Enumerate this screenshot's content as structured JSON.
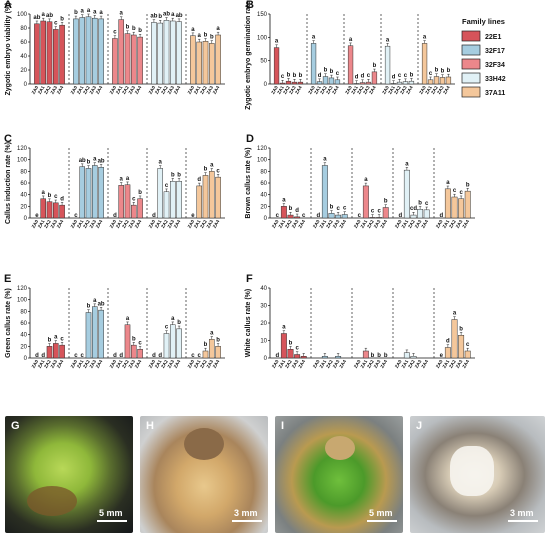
{
  "legend": {
    "title": "Family lines",
    "entries": [
      {
        "name": "22E1",
        "color": "#d6545a"
      },
      {
        "name": "32F17",
        "color": "#a6cde0"
      },
      {
        "name": "32F34",
        "color": "#ec878b"
      },
      {
        "name": "33H42",
        "color": "#e1f1f6"
      },
      {
        "name": "37A11",
        "color": "#f4c79b"
      }
    ]
  },
  "chart_data": [
    {
      "panel": "A",
      "type": "bar",
      "ylabel": "Zygotic embryo viability (%)",
      "ylim": [
        0,
        100
      ],
      "yticks": [
        0,
        20,
        40,
        60,
        80,
        100
      ],
      "groups": [
        "22E1",
        "32F17",
        "32F34",
        "33H42",
        "37A11"
      ],
      "categories": [
        "ZA0",
        "ZA1",
        "ZA2",
        "ZA3",
        "ZA4"
      ],
      "values": [
        [
          86,
          90,
          89,
          78,
          84
        ],
        [
          93,
          95,
          96,
          94,
          93
        ],
        [
          65,
          92,
          72,
          70,
          67
        ],
        [
          88,
          87,
          91,
          90,
          89
        ],
        [
          69,
          60,
          61,
          58,
          70
        ]
      ],
      "labels": [
        [
          "ab",
          "a",
          "ab",
          "c",
          "b"
        ],
        [
          "b",
          "a",
          "a",
          "a",
          "a"
        ],
        [
          "c",
          "a",
          "b",
          "b",
          "b"
        ],
        [
          "ab",
          "b",
          "ab",
          "a",
          "ab"
        ],
        [
          "a",
          "a",
          "b",
          "b",
          "a"
        ]
      ]
    },
    {
      "panel": "B",
      "type": "bar",
      "ylabel": "Zygotic embryo germination rate (%)",
      "ylim": [
        0,
        150
      ],
      "yticks": [
        0,
        50,
        100,
        150
      ],
      "groups": [
        "22E1",
        "32F17",
        "32F34",
        "33H42",
        "37A11"
      ],
      "categories": [
        "ZA0",
        "ZA1",
        "ZA2",
        "ZA3",
        "ZA4"
      ],
      "values": [
        [
          78,
          2,
          6,
          4,
          4
        ],
        [
          87,
          5,
          16,
          13,
          9
        ],
        [
          82,
          1,
          3,
          4,
          26
        ],
        [
          81,
          1,
          4,
          5,
          6
        ],
        [
          87,
          9,
          16,
          14,
          15
        ]
      ],
      "labels": [
        [
          "a",
          "c",
          "b",
          "b",
          "b"
        ],
        [
          "a",
          "d",
          "b",
          "b",
          "c"
        ],
        [
          "a",
          "d",
          "d",
          "c",
          "b"
        ],
        [
          "a",
          "d",
          "c",
          "c",
          "b"
        ],
        [
          "a",
          "c",
          "b",
          "b",
          "b"
        ]
      ]
    },
    {
      "panel": "C",
      "type": "bar",
      "ylabel": "Callus induction rate (%)",
      "ylim": [
        0,
        120
      ],
      "yticks": [
        0,
        20,
        40,
        60,
        80,
        100,
        120
      ],
      "groups": [
        "22E1",
        "32F17",
        "32F34",
        "33H42",
        "37A11"
      ],
      "categories": [
        "ZA0",
        "ZA1",
        "ZA2",
        "ZA3",
        "ZA4"
      ],
      "values": [
        [
          0,
          33,
          28,
          26,
          22
        ],
        [
          0,
          88,
          85,
          90,
          87
        ],
        [
          0,
          56,
          57,
          22,
          33
        ],
        [
          0,
          85,
          45,
          63,
          63
        ],
        [
          0,
          55,
          73,
          80,
          70
        ]
      ],
      "labels": [
        [
          "e",
          "a",
          "b",
          "c",
          "d"
        ],
        [
          "c",
          "ab",
          "b",
          "a",
          "ab"
        ],
        [
          "d",
          "a",
          "a",
          "c",
          "b"
        ],
        [
          "d",
          "a",
          "c",
          "b",
          "b"
        ],
        [
          "e",
          "d",
          "b",
          "a",
          "c"
        ]
      ]
    },
    {
      "panel": "D",
      "type": "bar",
      "ylabel": "Brown callus rate (%)",
      "ylim": [
        0,
        120
      ],
      "yticks": [
        0,
        20,
        40,
        60,
        80,
        100,
        120
      ],
      "groups": [
        "22E1",
        "32F17",
        "32F34",
        "33H42",
        "37A11"
      ],
      "categories": [
        "ZA0",
        "ZA1",
        "ZA2",
        "ZA3",
        "ZA4"
      ],
      "values": [
        [
          0,
          20,
          5,
          2,
          0
        ],
        [
          0,
          90,
          8,
          5,
          6
        ],
        [
          0,
          55,
          1,
          1,
          18
        ],
        [
          0,
          82,
          5,
          15,
          14
        ],
        [
          0,
          50,
          36,
          33,
          46
        ]
      ],
      "labels": [
        [
          "c",
          "a",
          "b",
          "d",
          "c"
        ],
        [
          "d",
          "a",
          "b",
          "c",
          "c"
        ],
        [
          "c",
          "a",
          "c",
          "c",
          "b"
        ],
        [
          "d",
          "a",
          "cd",
          "b",
          "c"
        ],
        [
          "d",
          "a",
          "c",
          "c",
          "b"
        ]
      ]
    },
    {
      "panel": "E",
      "type": "bar",
      "ylabel": "Green callus rate (%)",
      "ylim": [
        0,
        120
      ],
      "yticks": [
        0,
        20,
        40,
        60,
        80,
        100,
        120
      ],
      "groups": [
        "22E1",
        "32F17",
        "32F34",
        "33H42",
        "37A11"
      ],
      "categories": [
        "ZA0",
        "ZA1",
        "ZA2",
        "ZA3",
        "ZA4"
      ],
      "values": [
        [
          0,
          0,
          20,
          25,
          22
        ],
        [
          0,
          0,
          78,
          88,
          82
        ],
        [
          0,
          0,
          57,
          22,
          15
        ],
        [
          0,
          0,
          42,
          57,
          50
        ],
        [
          0,
          0,
          12,
          32,
          20
        ]
      ],
      "labels": [
        [
          "d",
          "d",
          "b",
          "a",
          "c"
        ],
        [
          "c",
          "c",
          "b",
          "a",
          "ab"
        ],
        [
          "d",
          "d",
          "a",
          "b",
          "c"
        ],
        [
          "d",
          "d",
          "c",
          "a",
          "b"
        ],
        [
          "c",
          "c",
          "b",
          "a",
          "b"
        ]
      ]
    },
    {
      "panel": "F",
      "type": "bar",
      "ylabel": "White callus rate (%)",
      "ylim": [
        0,
        40
      ],
      "yticks": [
        0,
        10,
        20,
        30,
        40
      ],
      "groups": [
        "22E1",
        "32F17",
        "32F34",
        "33H42",
        "37A11"
      ],
      "categories": [
        "ZA0",
        "ZA1",
        "ZA2",
        "ZA3",
        "ZA4"
      ],
      "values": [
        [
          0,
          14,
          5,
          2,
          1
        ],
        [
          0,
          1,
          0,
          1,
          0
        ],
        [
          0,
          4,
          0,
          0,
          0
        ],
        [
          0,
          3,
          1,
          0,
          0
        ],
        [
          0,
          6,
          22,
          13,
          4
        ]
      ],
      "labels": [
        [
          "d",
          "a",
          "b",
          "c",
          ""
        ],
        [
          "",
          "",
          "",
          "",
          ""
        ],
        [
          "",
          "",
          "b",
          "b",
          "b"
        ],
        [
          "",
          "",
          "",
          "",
          ""
        ],
        [
          "e",
          "d",
          "a",
          "b",
          "c"
        ]
      ]
    }
  ],
  "photos": [
    {
      "letter": "G",
      "scale": "5 mm"
    },
    {
      "letter": "H",
      "scale": "3 mm"
    },
    {
      "letter": "I",
      "scale": "5 mm"
    },
    {
      "letter": "J",
      "scale": "3 mm"
    }
  ]
}
